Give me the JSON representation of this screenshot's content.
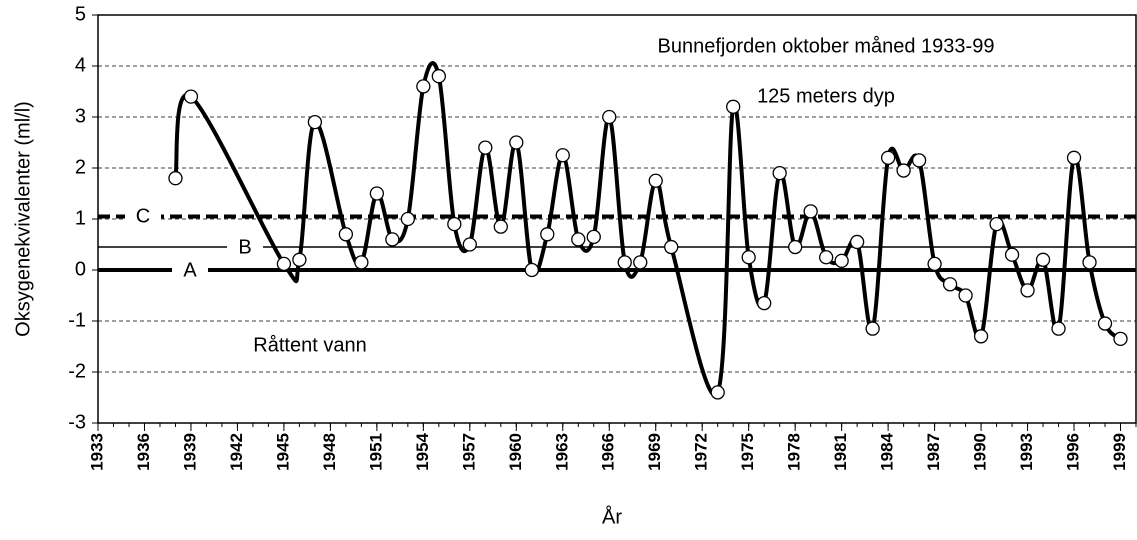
{
  "chart_data": {
    "type": "line",
    "annotations": [
      "Bunnefjorden oktober måned 1933-99",
      "125 meters dyp",
      "Råttent vann"
    ],
    "x_label": "År",
    "y_label": "Oksygenekvivalenter (ml/l)",
    "series": [
      {
        "color": "#000000",
        "x": [
          1938,
          1939,
          1945,
          1946,
          1947,
          1949,
          1950,
          1951,
          1952,
          1953,
          1954,
          1955,
          1956,
          1957,
          1958,
          1959,
          1960,
          1961,
          1962,
          1963,
          1964,
          1965,
          1966,
          1967,
          1968,
          1969,
          1970,
          1973,
          1974,
          1975,
          1976,
          1977,
          1978,
          1979,
          1980,
          1981,
          1982,
          1983,
          1984,
          1985,
          1986,
          1987,
          1988,
          1989,
          1990,
          1991,
          1992,
          1993,
          1994,
          1995,
          1996,
          1997,
          1998,
          1999
        ],
        "values": [
          1.8,
          3.4,
          0.12,
          0.2,
          2.9,
          0.7,
          0.15,
          1.5,
          0.6,
          1.0,
          3.6,
          3.8,
          0.9,
          0.5,
          2.4,
          0.85,
          2.5,
          0.0,
          0.7,
          2.25,
          0.6,
          0.65,
          3.0,
          0.15,
          0.15,
          1.75,
          0.45,
          -2.4,
          3.2,
          0.25,
          -0.65,
          1.9,
          0.45,
          1.15,
          0.25,
          0.18,
          0.55,
          -1.15,
          2.2,
          1.95,
          2.15,
          0.12,
          -0.28,
          -0.5,
          -1.3,
          0.9,
          0.3,
          -0.4,
          0.2,
          -1.15,
          2.2,
          0.15,
          -1.05,
          -1.35
        ]
      }
    ],
    "reference_lines": [
      {
        "label": "A",
        "value": 0
      },
      {
        "label": "B",
        "value": 0.45
      },
      {
        "label": "C",
        "value": 1.05
      }
    ],
    "xlim": [
      1933,
      2000
    ],
    "xticks": [
      1933,
      1936,
      1939,
      1942,
      1945,
      1948,
      1951,
      1954,
      1957,
      1960,
      1963,
      1966,
      1969,
      1972,
      1975,
      1978,
      1981,
      1984,
      1987,
      1990,
      1993,
      1996,
      1999
    ],
    "ylim": [
      -3,
      5
    ],
    "yticks": [
      -3,
      -2,
      -1,
      0,
      1,
      2,
      3,
      4,
      5
    ],
    "grid": true
  }
}
